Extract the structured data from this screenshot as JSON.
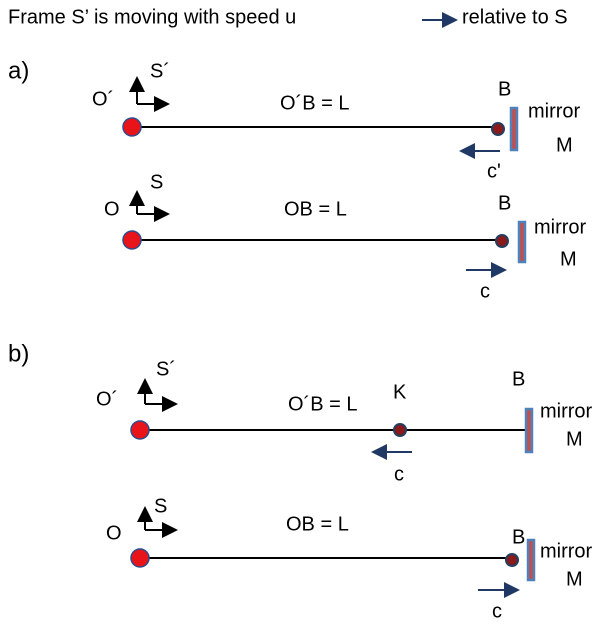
{
  "title": {
    "before": "Frame S’ is moving with speed u",
    "after": "relative to S"
  },
  "panels": [
    {
      "label": "a)",
      "rows": [
        {
          "origin": "O´",
          "frame": "S´",
          "distance": "O´B =  L",
          "point": "B",
          "mirror": "mirror",
          "mirror_label": "M",
          "velocity": "c'"
        },
        {
          "origin": "O",
          "frame": "S",
          "distance": "OB =  L",
          "point": "B",
          "mirror": "mirror",
          "mirror_label": "M",
          "velocity": "c"
        }
      ]
    },
    {
      "label": "b)",
      "rows": [
        {
          "origin": "O´",
          "frame": "S´",
          "distance": "O´B =  L",
          "point": "B",
          "pulse": "K",
          "mirror": "mirror",
          "mirror_label": "M",
          "velocity": "c"
        },
        {
          "origin": "O",
          "frame": "S",
          "distance": "OB =  L",
          "point": "B",
          "mirror": "mirror",
          "mirror_label": "M",
          "velocity": "c"
        }
      ]
    }
  ]
}
